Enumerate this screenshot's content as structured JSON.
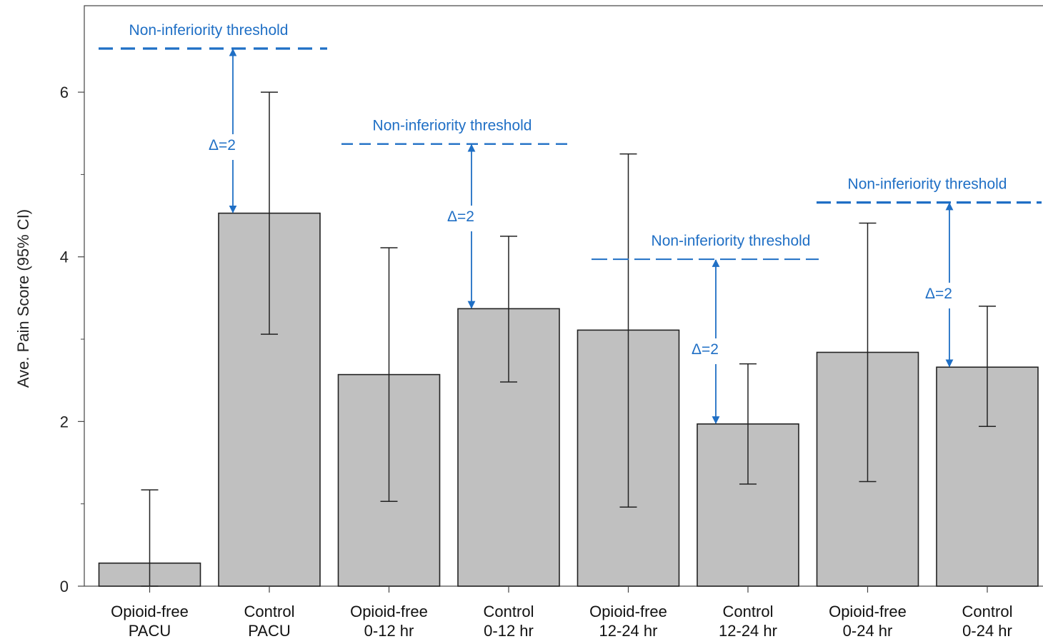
{
  "chart_data": {
    "type": "bar",
    "ylabel": "Ave. Pain Score (95% CI)",
    "ylim": [
      0,
      7.05
    ],
    "yticks": [
      0,
      2,
      4,
      6
    ],
    "categories": [
      [
        "Opioid-free",
        "PACU"
      ],
      [
        "Control",
        "PACU"
      ],
      [
        "Opioid-free",
        "0-12 hr"
      ],
      [
        "Control",
        "0-12 hr"
      ],
      [
        "Opioid-free",
        "12-24 hr"
      ],
      [
        "Control",
        "12-24 hr"
      ],
      [
        "Opioid-free",
        "0-24 hr"
      ],
      [
        "Control",
        "0-24 hr"
      ]
    ],
    "values": [
      0.28,
      4.53,
      2.57,
      3.37,
      3.11,
      1.97,
      2.84,
      2.66
    ],
    "ci_low": [
      0.0,
      3.06,
      1.03,
      2.48,
      0.96,
      1.24,
      1.27,
      1.94
    ],
    "ci_high": [
      1.17,
      6.0,
      4.11,
      4.25,
      5.25,
      2.7,
      4.41,
      3.4
    ],
    "bar_color": "#c0c0c0",
    "annotation_color": "#1f6fc5",
    "annotations": [
      {
        "label": "Non-inferiority threshold",
        "delta_label": "Δ=2",
        "threshold": 6.53,
        "control_value": 4.53
      },
      {
        "label": "Non-inferiority threshold",
        "delta_label": "Δ=2",
        "threshold": 5.37,
        "control_value": 3.37
      },
      {
        "label": "Non-inferiority threshold",
        "delta_label": "Δ=2",
        "threshold": 3.97,
        "control_value": 1.97
      },
      {
        "label": "Non-inferiority threshold",
        "delta_label": "Δ=2",
        "threshold": 4.66,
        "control_value": 2.66
      }
    ]
  }
}
